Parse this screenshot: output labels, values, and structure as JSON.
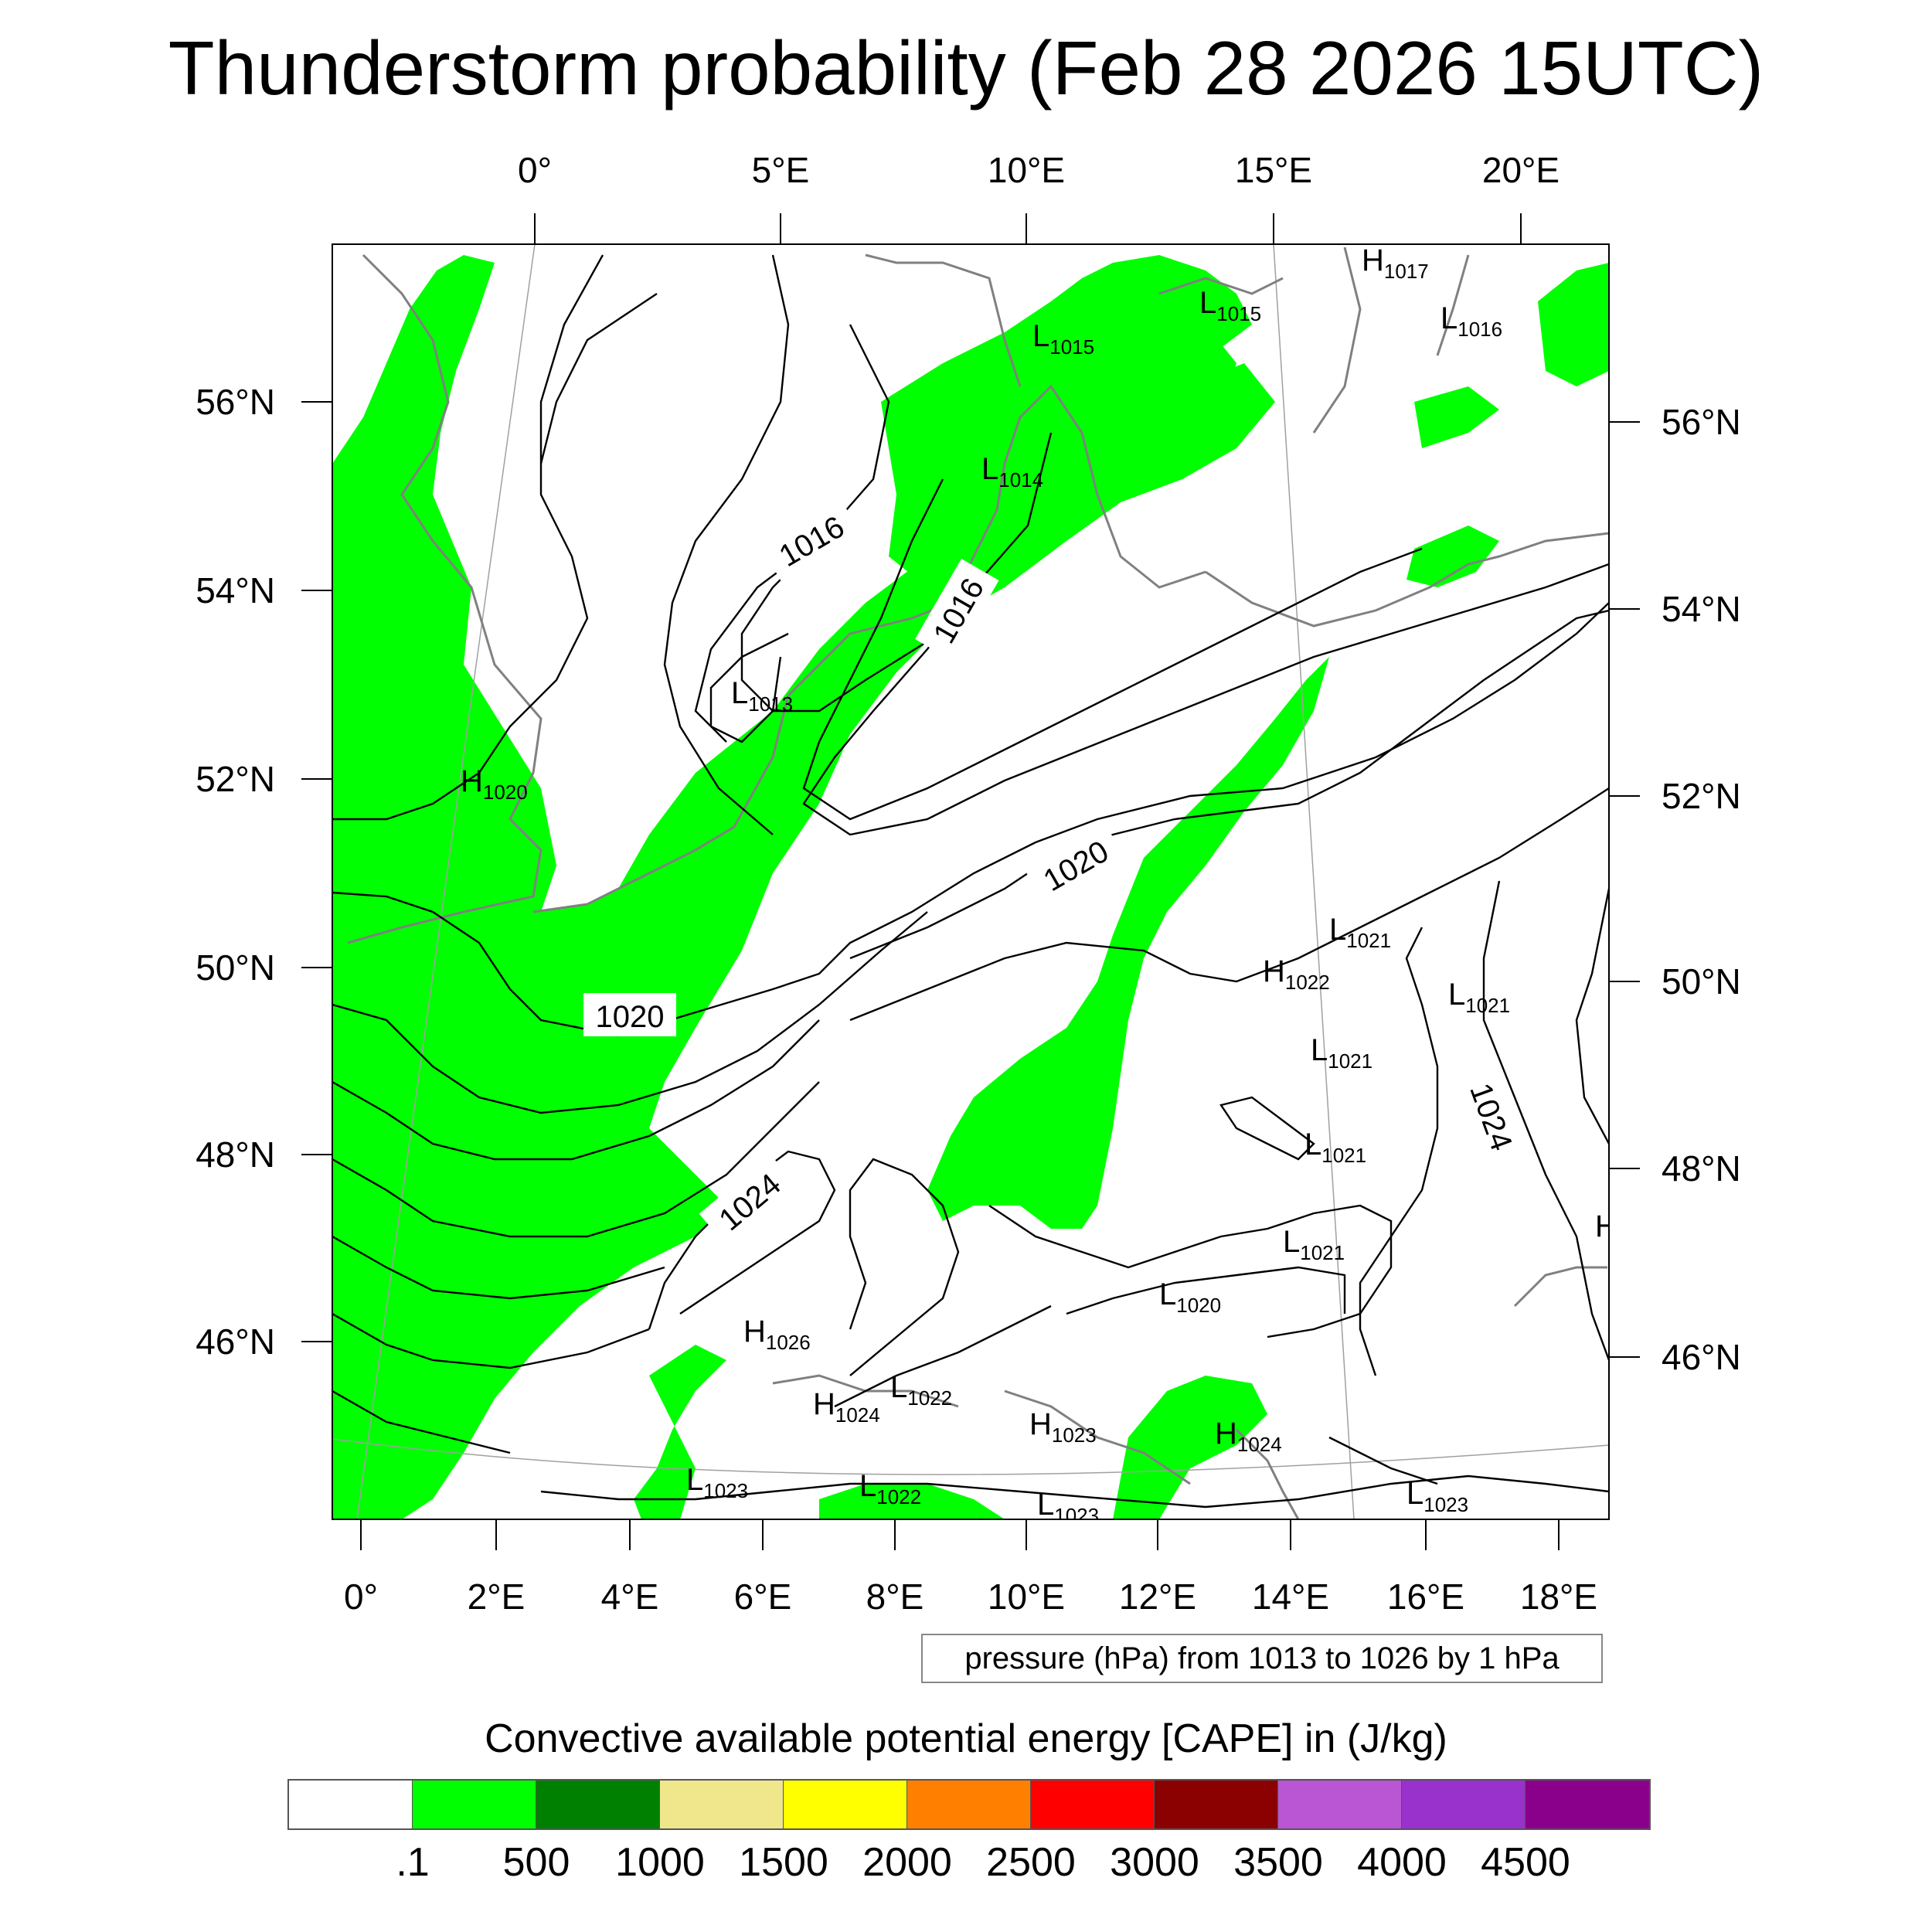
{
  "title": "Thunderstorm probability (Feb 28 2026 15UTC)",
  "map": {
    "top_lon_labels": [
      "0°",
      "5°E",
      "10°E",
      "15°E",
      "20°E"
    ],
    "bottom_lon_labels": [
      "0°",
      "2°E",
      "4°E",
      "6°E",
      "8°E",
      "10°E",
      "12°E",
      "14°E",
      "16°E",
      "18°E"
    ],
    "left_lat_labels": [
      "56°N",
      "54°N",
      "52°N",
      "50°N",
      "48°N",
      "46°N"
    ],
    "right_lat_labels": [
      "56°N",
      "54°N",
      "52°N",
      "50°N",
      "48°N",
      "46°N"
    ],
    "isobar_labels": [
      {
        "text": "1016",
        "kind": "isobar"
      },
      {
        "text": "1016",
        "kind": "isobar"
      },
      {
        "text": "1020",
        "kind": "isobar"
      },
      {
        "text": "1020",
        "kind": "isobar"
      },
      {
        "text": "1024",
        "kind": "isobar"
      },
      {
        "text": "1024",
        "kind": "isobar"
      }
    ],
    "pressure_centers": [
      {
        "type": "H",
        "value": "1017"
      },
      {
        "type": "L",
        "value": "1015"
      },
      {
        "type": "L",
        "value": "1016"
      },
      {
        "type": "L",
        "value": "1015"
      },
      {
        "type": "L",
        "value": "1014"
      },
      {
        "type": "L",
        "value": "1013"
      },
      {
        "type": "H",
        "value": "1020"
      },
      {
        "type": "L",
        "value": "1021"
      },
      {
        "type": "H",
        "value": "1022"
      },
      {
        "type": "L",
        "value": "1021"
      },
      {
        "type": "L",
        "value": "1021"
      },
      {
        "type": "L",
        "value": "1021"
      },
      {
        "type": "L",
        "value": "1021"
      },
      {
        "type": "L",
        "value": "1020"
      },
      {
        "type": "H",
        "value": "1026"
      },
      {
        "type": "H",
        "value": "1024"
      },
      {
        "type": "L",
        "value": "1022"
      },
      {
        "type": "H",
        "value": "1023"
      },
      {
        "type": "H",
        "value": "1024"
      },
      {
        "type": "L",
        "value": "1023"
      },
      {
        "type": "L",
        "value": "1022"
      },
      {
        "type": "L",
        "value": "1023"
      },
      {
        "type": "L",
        "value": "1023"
      }
    ],
    "partial_center_letter": "H",
    "contour_info": "pressure (hPa) from 1013 to 1026 by 1 hPa",
    "colors": {
      "cape_area": "#00ff00",
      "isobar": "#000000",
      "coastline": "#808080",
      "gridline": "#a0a0a0"
    }
  },
  "colorbar": {
    "title": "Convective available potential energy [CAPE] in (J/kg)",
    "colors": [
      "#ffffff",
      "#00ff00",
      "#008000",
      "#f0e68c",
      "#ffff00",
      "#ff8000",
      "#ff0000",
      "#8b0000",
      "#ba55d3",
      "#9932cc",
      "#8b008b"
    ],
    "labels": [
      ".1",
      "500",
      "1000",
      "1500",
      "2000",
      "2500",
      "3000",
      "3500",
      "4000",
      "4500"
    ]
  }
}
